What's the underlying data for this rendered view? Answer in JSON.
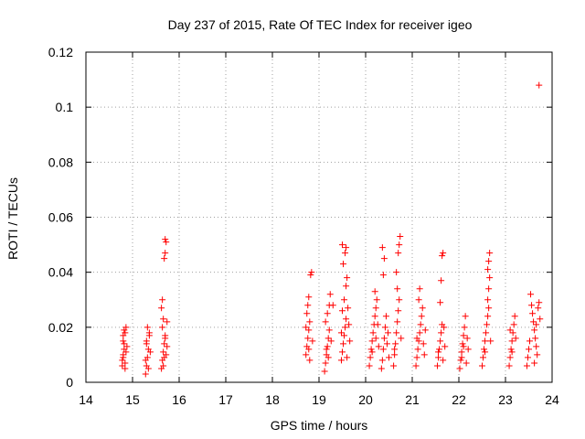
{
  "chart_data": {
    "type": "scatter",
    "title": "Day 237 of 2015, Rate Of TEC Index for receiver igeo",
    "xlabel": "GPS time / hours",
    "ylabel": "ROTI / TECUs",
    "xlim": [
      14,
      24
    ],
    "ylim": [
      0,
      0.12
    ],
    "x_ticks": [
      14,
      15,
      16,
      17,
      18,
      19,
      20,
      21,
      22,
      23,
      24
    ],
    "x_tick_labels": [
      "14",
      "15",
      "16",
      "17",
      "18",
      "19",
      "20",
      "21",
      "22",
      "23",
      "24"
    ],
    "y_ticks": [
      0,
      0.02,
      0.04,
      0.06,
      0.08,
      0.1,
      0.12
    ],
    "y_tick_labels": [
      "0",
      "0.02",
      "0.04",
      "0.06",
      "0.08",
      "0.1",
      "0.12"
    ],
    "grid": true,
    "marker": "+",
    "color": "#ff0000",
    "series": [
      {
        "name": "ROTI",
        "points": [
          [
            14.78,
            0.006
          ],
          [
            14.8,
            0.009
          ],
          [
            14.82,
            0.012
          ],
          [
            14.8,
            0.015
          ],
          [
            14.84,
            0.018
          ],
          [
            14.86,
            0.02
          ],
          [
            14.82,
            0.014
          ],
          [
            14.78,
            0.008
          ],
          [
            14.84,
            0.005
          ],
          [
            14.86,
            0.011
          ],
          [
            14.8,
            0.017
          ],
          [
            14.82,
            0.019
          ],
          [
            14.88,
            0.013
          ],
          [
            14.84,
            0.007
          ],
          [
            14.8,
            0.01
          ],
          [
            15.28,
            0.003
          ],
          [
            15.3,
            0.006
          ],
          [
            15.32,
            0.009
          ],
          [
            15.34,
            0.012
          ],
          [
            15.3,
            0.015
          ],
          [
            15.36,
            0.018
          ],
          [
            15.32,
            0.02
          ],
          [
            15.28,
            0.008
          ],
          [
            15.34,
            0.005
          ],
          [
            15.38,
            0.011
          ],
          [
            15.3,
            0.014
          ],
          [
            15.36,
            0.017
          ],
          [
            15.62,
            0.005
          ],
          [
            15.64,
            0.008
          ],
          [
            15.66,
            0.011
          ],
          [
            15.68,
            0.014
          ],
          [
            15.7,
            0.017
          ],
          [
            15.64,
            0.02
          ],
          [
            15.66,
            0.023
          ],
          [
            15.62,
            0.027
          ],
          [
            15.64,
            0.03
          ],
          [
            15.68,
            0.045
          ],
          [
            15.7,
            0.047
          ],
          [
            15.72,
            0.051
          ],
          [
            15.7,
            0.052
          ],
          [
            15.74,
            0.022
          ],
          [
            15.72,
            0.01
          ],
          [
            15.66,
            0.006
          ],
          [
            15.74,
            0.013
          ],
          [
            15.68,
            0.009
          ],
          [
            15.7,
            0.016
          ],
          [
            18.72,
            0.01
          ],
          [
            18.74,
            0.013
          ],
          [
            18.76,
            0.016
          ],
          [
            18.78,
            0.019
          ],
          [
            18.8,
            0.022
          ],
          [
            18.74,
            0.025
          ],
          [
            18.76,
            0.028
          ],
          [
            18.78,
            0.031
          ],
          [
            18.82,
            0.039
          ],
          [
            18.84,
            0.04
          ],
          [
            18.8,
            0.008
          ],
          [
            18.86,
            0.015
          ],
          [
            18.72,
            0.02
          ],
          [
            18.78,
            0.012
          ],
          [
            19.12,
            0.004
          ],
          [
            19.14,
            0.007
          ],
          [
            19.16,
            0.01
          ],
          [
            19.18,
            0.013
          ],
          [
            19.2,
            0.016
          ],
          [
            19.22,
            0.019
          ],
          [
            19.14,
            0.022
          ],
          [
            19.18,
            0.025
          ],
          [
            19.22,
            0.028
          ],
          [
            19.24,
            0.032
          ],
          [
            19.3,
            0.028
          ],
          [
            19.16,
            0.012
          ],
          [
            19.26,
            0.015
          ],
          [
            19.2,
            0.009
          ],
          [
            19.48,
            0.008
          ],
          [
            19.5,
            0.011
          ],
          [
            19.52,
            0.014
          ],
          [
            19.54,
            0.017
          ],
          [
            19.56,
            0.02
          ],
          [
            19.58,
            0.023
          ],
          [
            19.5,
            0.026
          ],
          [
            19.54,
            0.03
          ],
          [
            19.58,
            0.035
          ],
          [
            19.6,
            0.038
          ],
          [
            19.52,
            0.043
          ],
          [
            19.56,
            0.047
          ],
          [
            19.5,
            0.05
          ],
          [
            19.58,
            0.049
          ],
          [
            19.62,
            0.027
          ],
          [
            19.64,
            0.021
          ],
          [
            19.66,
            0.015
          ],
          [
            19.6,
            0.009
          ],
          [
            19.48,
            0.018
          ],
          [
            20.08,
            0.006
          ],
          [
            20.1,
            0.009
          ],
          [
            20.12,
            0.012
          ],
          [
            20.14,
            0.015
          ],
          [
            20.16,
            0.018
          ],
          [
            20.18,
            0.021
          ],
          [
            20.2,
            0.024
          ],
          [
            20.22,
            0.027
          ],
          [
            20.24,
            0.03
          ],
          [
            20.2,
            0.033
          ],
          [
            20.26,
            0.021
          ],
          [
            20.14,
            0.011
          ],
          [
            20.22,
            0.016
          ],
          [
            20.28,
            0.013
          ],
          [
            20.34,
            0.005
          ],
          [
            20.36,
            0.008
          ],
          [
            20.38,
            0.012
          ],
          [
            20.4,
            0.016
          ],
          [
            20.42,
            0.02
          ],
          [
            20.44,
            0.024
          ],
          [
            20.38,
            0.039
          ],
          [
            20.4,
            0.045
          ],
          [
            20.36,
            0.049
          ],
          [
            20.46,
            0.014
          ],
          [
            20.5,
            0.009
          ],
          [
            20.48,
            0.018
          ],
          [
            20.6,
            0.006
          ],
          [
            20.62,
            0.01
          ],
          [
            20.64,
            0.014
          ],
          [
            20.66,
            0.018
          ],
          [
            20.68,
            0.022
          ],
          [
            20.7,
            0.026
          ],
          [
            20.72,
            0.03
          ],
          [
            20.68,
            0.034
          ],
          [
            20.66,
            0.04
          ],
          [
            20.7,
            0.047
          ],
          [
            20.72,
            0.05
          ],
          [
            20.74,
            0.053
          ],
          [
            20.76,
            0.016
          ],
          [
            20.62,
            0.012
          ],
          [
            21.08,
            0.006
          ],
          [
            21.1,
            0.009
          ],
          [
            21.12,
            0.012
          ],
          [
            21.14,
            0.015
          ],
          [
            21.16,
            0.018
          ],
          [
            21.18,
            0.021
          ],
          [
            21.2,
            0.024
          ],
          [
            21.22,
            0.027
          ],
          [
            21.14,
            0.03
          ],
          [
            21.16,
            0.034
          ],
          [
            21.24,
            0.014
          ],
          [
            21.26,
            0.01
          ],
          [
            21.1,
            0.016
          ],
          [
            21.28,
            0.019
          ],
          [
            21.54,
            0.006
          ],
          [
            21.56,
            0.009
          ],
          [
            21.58,
            0.012
          ],
          [
            21.6,
            0.015
          ],
          [
            21.62,
            0.018
          ],
          [
            21.64,
            0.021
          ],
          [
            21.6,
            0.029
          ],
          [
            21.62,
            0.037
          ],
          [
            21.64,
            0.046
          ],
          [
            21.66,
            0.047
          ],
          [
            21.68,
            0.02
          ],
          [
            21.7,
            0.013
          ],
          [
            21.56,
            0.011
          ],
          [
            21.66,
            0.008
          ],
          [
            22.02,
            0.005
          ],
          [
            22.04,
            0.008
          ],
          [
            22.06,
            0.011
          ],
          [
            22.08,
            0.014
          ],
          [
            22.1,
            0.017
          ],
          [
            22.12,
            0.02
          ],
          [
            22.14,
            0.024
          ],
          [
            22.18,
            0.016
          ],
          [
            22.2,
            0.012
          ],
          [
            22.06,
            0.009
          ],
          [
            22.16,
            0.007
          ],
          [
            22.1,
            0.013
          ],
          [
            22.5,
            0.006
          ],
          [
            22.52,
            0.009
          ],
          [
            22.54,
            0.012
          ],
          [
            22.56,
            0.015
          ],
          [
            22.58,
            0.018
          ],
          [
            22.6,
            0.021
          ],
          [
            22.62,
            0.024
          ],
          [
            22.64,
            0.027
          ],
          [
            22.62,
            0.03
          ],
          [
            22.64,
            0.034
          ],
          [
            22.66,
            0.038
          ],
          [
            22.62,
            0.041
          ],
          [
            22.64,
            0.044
          ],
          [
            22.66,
            0.047
          ],
          [
            22.68,
            0.015
          ],
          [
            22.56,
            0.011
          ],
          [
            23.08,
            0.006
          ],
          [
            23.1,
            0.009
          ],
          [
            23.12,
            0.012
          ],
          [
            23.14,
            0.015
          ],
          [
            23.16,
            0.018
          ],
          [
            23.18,
            0.021
          ],
          [
            23.2,
            0.024
          ],
          [
            23.14,
            0.011
          ],
          [
            23.22,
            0.016
          ],
          [
            23.1,
            0.019
          ],
          [
            23.46,
            0.006
          ],
          [
            23.48,
            0.009
          ],
          [
            23.5,
            0.012
          ],
          [
            23.52,
            0.015
          ],
          [
            23.54,
            0.032
          ],
          [
            23.56,
            0.028
          ],
          [
            23.58,
            0.025
          ],
          [
            23.6,
            0.022
          ],
          [
            23.62,
            0.019
          ],
          [
            23.64,
            0.016
          ],
          [
            23.66,
            0.013
          ],
          [
            23.68,
            0.01
          ],
          [
            23.7,
            0.027
          ],
          [
            23.72,
            0.029
          ],
          [
            23.74,
            0.023
          ],
          [
            23.62,
            0.007
          ],
          [
            23.66,
            0.021
          ],
          [
            23.72,
            0.108
          ]
        ]
      }
    ]
  }
}
